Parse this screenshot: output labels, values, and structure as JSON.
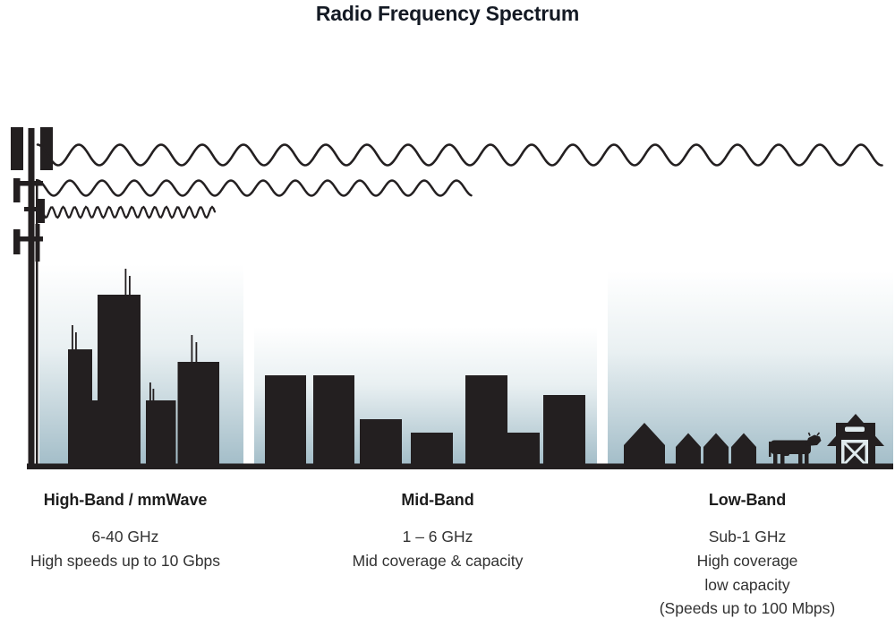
{
  "title": "Radio Frequency Spectrum",
  "colors": {
    "ink": "#231f20",
    "sky_top": "#ffffff",
    "sky_bottom": "#a4bec9",
    "text": "#323232"
  },
  "bands": [
    {
      "name": "high-band",
      "heading": "High-Band / mmWave",
      "detail_lines": [
        "6-40 GHz",
        "High speeds up to 10 Gbps"
      ],
      "wave": "short-wavelength-short-reach",
      "scene": "city-skyscrapers-with-antennas"
    },
    {
      "name": "mid-band",
      "heading": "Mid-Band",
      "detail_lines": [
        "1 – 6 GHz",
        "Mid coverage & capacity"
      ],
      "wave": "medium-wavelength-medium-reach",
      "scene": "mid-rise-buildings"
    },
    {
      "name": "low-band",
      "heading": "Low-Band",
      "detail_lines": [
        "Sub-1 GHz",
        "High coverage",
        "low capacity",
        "(Speeds up to 100 Mbps)"
      ],
      "wave": "long-wavelength-long-reach",
      "scene": "rural-houses-cow-and-barn"
    }
  ]
}
